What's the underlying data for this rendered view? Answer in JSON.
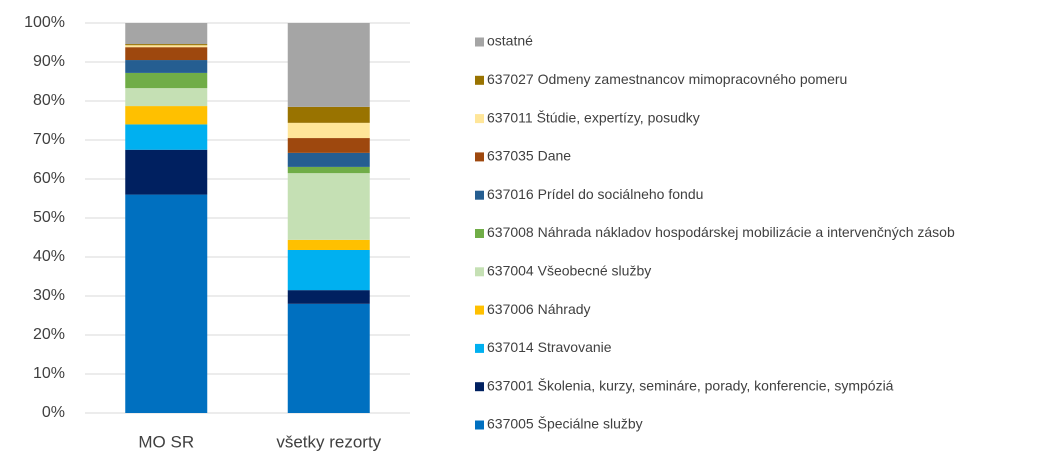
{
  "chart_data": {
    "type": "stacked_bar",
    "categories": [
      "MO SR",
      "všetky rezorty"
    ],
    "series": [
      {
        "name": "637005 Špeciálne služby",
        "color": "#0070c0",
        "values": [
          56,
          28
        ]
      },
      {
        "name": "637001 Školenia, kurzy, semináre, porady, konferencie, sympóziá",
        "color": "#002060",
        "values": [
          11.5,
          3.5
        ]
      },
      {
        "name": "637014 Stravovanie",
        "color": "#00b0f0",
        "values": [
          6.5,
          10.3
        ]
      },
      {
        "name": "637006 Náhrady",
        "color": "#ffc000",
        "values": [
          4.7,
          2.6
        ]
      },
      {
        "name": "637004 Všeobecné služby",
        "color": "#c5e0b4",
        "values": [
          4.6,
          17.1
        ]
      },
      {
        "name": "637008 Náhrada nákladov hospodárskej mobilizácie a intervenčných zásob",
        "color": "#70ad47",
        "values": [
          3.9,
          1.6
        ]
      },
      {
        "name": "637016 Prídel do sociálneho fondu",
        "color": "#255e91",
        "values": [
          3.3,
          3.6
        ]
      },
      {
        "name": "637035 Dane",
        "color": "#9e480e",
        "values": [
          3.3,
          3.8
        ]
      },
      {
        "name": "637011 Štúdie, expertízy, posudky",
        "color": "#ffe699",
        "values": [
          0.5,
          3.9
        ]
      },
      {
        "name": "637027 Odmeny zamestnancov mimopracovného pomeru",
        "color": "#997300",
        "values": [
          0.3,
          4.1
        ]
      },
      {
        "name": "ostatné",
        "color": "#a5a5a5",
        "values": [
          5.4,
          21.5
        ]
      }
    ],
    "ylim": [
      0,
      100
    ],
    "yticks": [
      {
        "value": 0,
        "label": "0%"
      },
      {
        "value": 10,
        "label": "10%"
      },
      {
        "value": 20,
        "label": "20%"
      },
      {
        "value": 30,
        "label": "30%"
      },
      {
        "value": 40,
        "label": "40%"
      },
      {
        "value": 50,
        "label": "50%"
      },
      {
        "value": 60,
        "label": "60%"
      },
      {
        "value": 70,
        "label": "70%"
      },
      {
        "value": 80,
        "label": "80%"
      },
      {
        "value": 90,
        "label": "90%"
      },
      {
        "value": 100,
        "label": "100%"
      }
    ],
    "grid": true,
    "legend": "right"
  }
}
